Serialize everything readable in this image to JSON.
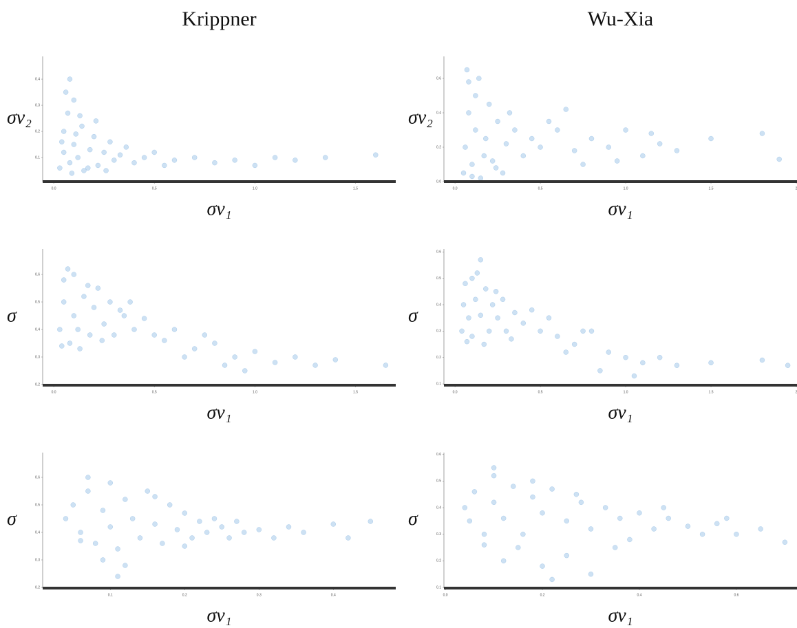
{
  "chart_data": [
    {
      "type": "scatter",
      "title": "Krippner",
      "x_label": "σν₁",
      "y_label": "σν₂",
      "color": "#6fa8dc",
      "xlim": [
        -0.055,
        1.7
      ],
      "ylim": [
        0.008,
        0.487
      ],
      "xticks": [
        {
          "value": 0,
          "label": "0.0"
        },
        0.5,
        {
          "value": 1,
          "label": "1.0"
        },
        1.5
      ],
      "yticks": [
        0.1,
        0.2,
        0.3,
        0.4
      ],
      "x": [
        0.03,
        0.05,
        0.05,
        0.07,
        0.08,
        0.1,
        0.1,
        0.12,
        0.14,
        0.15,
        0.18,
        0.2,
        0.22,
        0.25,
        0.28,
        0.3,
        0.33,
        0.36,
        0.4,
        0.45,
        0.5,
        0.55,
        0.6,
        0.7,
        0.8,
        0.9,
        1.0,
        1.1,
        1.2,
        1.35,
        1.6,
        0.06,
        0.09,
        0.13,
        0.17,
        0.21,
        0.26,
        0.04,
        0.08,
        0.11
      ],
      "values": [
        0.06,
        0.12,
        0.2,
        0.27,
        0.08,
        0.15,
        0.32,
        0.1,
        0.22,
        0.05,
        0.13,
        0.18,
        0.07,
        0.12,
        0.16,
        0.09,
        0.11,
        0.14,
        0.08,
        0.1,
        0.12,
        0.07,
        0.09,
        0.1,
        0.08,
        0.09,
        0.07,
        0.1,
        0.09,
        0.1,
        0.11,
        0.35,
        0.04,
        0.26,
        0.06,
        0.24,
        0.05,
        0.16,
        0.4,
        0.19
      ]
    },
    {
      "type": "scatter",
      "title": "Wu-Xia",
      "x_label": "σν₁",
      "y_label": "σν₂",
      "color": "#6fa8dc",
      "xlim": [
        -0.065,
        2.004
      ],
      "ylim": [
        0,
        0.728
      ],
      "xticks": [
        {
          "value": 0,
          "label": "0.0"
        },
        0.5,
        {
          "value": 1,
          "label": "1.0"
        },
        1.5,
        2
      ],
      "yticks": [
        {
          "value": 0,
          "label": "0.0"
        },
        0.2,
        0.4,
        0.6
      ],
      "x": [
        0.05,
        0.06,
        0.08,
        0.08,
        0.1,
        0.12,
        0.12,
        0.15,
        0.18,
        0.2,
        0.22,
        0.25,
        0.28,
        0.3,
        0.35,
        0.4,
        0.45,
        0.5,
        0.6,
        0.7,
        0.8,
        0.9,
        1.0,
        1.1,
        1.2,
        1.3,
        1.5,
        1.8,
        1.9,
        0.07,
        0.1,
        0.14,
        0.17,
        0.24,
        0.32,
        0.55,
        0.75,
        0.95,
        1.15,
        0.65
      ],
      "values": [
        0.05,
        0.2,
        0.4,
        0.58,
        0.1,
        0.3,
        0.5,
        0.02,
        0.25,
        0.45,
        0.12,
        0.35,
        0.05,
        0.22,
        0.3,
        0.15,
        0.25,
        0.2,
        0.3,
        0.18,
        0.25,
        0.2,
        0.3,
        0.15,
        0.22,
        0.18,
        0.25,
        0.28,
        0.13,
        0.65,
        0.03,
        0.6,
        0.15,
        0.08,
        0.4,
        0.35,
        0.1,
        0.12,
        0.28,
        0.42
      ]
    },
    {
      "type": "scatter",
      "x_label": "σν₁",
      "y_label": "σ",
      "color": "#6fa8dc",
      "xlim": [
        -0.055,
        1.7
      ],
      "ylim": [
        0.1975,
        0.6925
      ],
      "xticks": [
        {
          "value": 0,
          "label": "0.0"
        },
        0.5,
        {
          "value": 1,
          "label": "1.0"
        },
        1.5
      ],
      "yticks": [
        0.2,
        0.3,
        0.4,
        0.5,
        0.6
      ],
      "x": [
        0.03,
        0.05,
        0.05,
        0.08,
        0.1,
        0.1,
        0.12,
        0.15,
        0.18,
        0.2,
        0.22,
        0.25,
        0.28,
        0.3,
        0.35,
        0.4,
        0.45,
        0.5,
        0.55,
        0.6,
        0.7,
        0.8,
        0.9,
        1.0,
        1.1,
        1.2,
        1.3,
        1.4,
        1.65,
        0.07,
        0.13,
        0.17,
        0.24,
        0.33,
        0.65,
        0.75,
        0.85,
        0.95,
        0.04,
        0.38
      ],
      "values": [
        0.4,
        0.5,
        0.58,
        0.35,
        0.45,
        0.6,
        0.4,
        0.52,
        0.38,
        0.48,
        0.55,
        0.42,
        0.5,
        0.38,
        0.45,
        0.4,
        0.44,
        0.38,
        0.36,
        0.4,
        0.33,
        0.35,
        0.3,
        0.32,
        0.28,
        0.3,
        0.27,
        0.29,
        0.27,
        0.62,
        0.33,
        0.56,
        0.36,
        0.47,
        0.3,
        0.38,
        0.27,
        0.25,
        0.34,
        0.5
      ]
    },
    {
      "type": "scatter",
      "x_label": "σν₁",
      "y_label": "σ",
      "color": "#6fa8dc",
      "xlim": [
        -0.065,
        2.004
      ],
      "ylim": [
        0.095,
        0.611
      ],
      "xticks": [
        {
          "value": 0,
          "label": "0.0"
        },
        0.5,
        {
          "value": 1,
          "label": "1.0"
        },
        1.5,
        2
      ],
      "yticks": [
        0.1,
        0.2,
        0.3,
        0.4,
        0.5,
        0.6
      ],
      "x": [
        0.04,
        0.05,
        0.06,
        0.08,
        0.1,
        0.1,
        0.12,
        0.15,
        0.18,
        0.2,
        0.22,
        0.25,
        0.28,
        0.3,
        0.35,
        0.4,
        0.45,
        0.5,
        0.55,
        0.6,
        0.7,
        0.8,
        0.9,
        1.0,
        1.1,
        1.2,
        1.3,
        1.5,
        1.8,
        1.95,
        0.07,
        0.13,
        0.17,
        0.24,
        0.33,
        0.65,
        0.75,
        0.85,
        1.05,
        0.15
      ],
      "values": [
        0.3,
        0.4,
        0.48,
        0.35,
        0.28,
        0.5,
        0.42,
        0.36,
        0.46,
        0.3,
        0.4,
        0.35,
        0.42,
        0.3,
        0.37,
        0.33,
        0.38,
        0.3,
        0.35,
        0.28,
        0.25,
        0.3,
        0.22,
        0.2,
        0.18,
        0.2,
        0.17,
        0.18,
        0.19,
        0.17,
        0.26,
        0.52,
        0.25,
        0.45,
        0.27,
        0.22,
        0.3,
        0.15,
        0.13,
        0.57
      ]
    },
    {
      "type": "scatter",
      "x_label": "σν₁",
      "y_label": "σ",
      "color": "#6fa8dc",
      "xlim": [
        0.009,
        0.484
      ],
      "ylim": [
        0.1975,
        0.69
      ],
      "xticks": [
        0.1,
        0.2,
        0.3,
        0.4
      ],
      "yticks": [
        0.2,
        0.3,
        0.4,
        0.5,
        0.6
      ],
      "x": [
        0.04,
        0.05,
        0.06,
        0.07,
        0.08,
        0.09,
        0.1,
        0.1,
        0.11,
        0.12,
        0.13,
        0.14,
        0.15,
        0.16,
        0.17,
        0.18,
        0.19,
        0.2,
        0.21,
        0.22,
        0.23,
        0.24,
        0.25,
        0.26,
        0.27,
        0.28,
        0.3,
        0.32,
        0.34,
        0.36,
        0.4,
        0.42,
        0.45,
        0.07,
        0.09,
        0.12,
        0.16,
        0.2,
        0.11,
        0.06
      ],
      "values": [
        0.45,
        0.5,
        0.4,
        0.55,
        0.36,
        0.48,
        0.58,
        0.42,
        0.34,
        0.52,
        0.45,
        0.38,
        0.55,
        0.43,
        0.36,
        0.5,
        0.41,
        0.47,
        0.38,
        0.44,
        0.4,
        0.45,
        0.42,
        0.38,
        0.44,
        0.4,
        0.41,
        0.38,
        0.42,
        0.4,
        0.43,
        0.38,
        0.44,
        0.6,
        0.3,
        0.28,
        0.53,
        0.35,
        0.24,
        0.37
      ]
    },
    {
      "type": "scatter",
      "x_label": "σν₁",
      "y_label": "σ",
      "color": "#6fa8dc",
      "xlim": [
        -0.003,
        0.725
      ],
      "ylim": [
        0.0975,
        0.607
      ],
      "xticks": [
        {
          "value": 0,
          "label": "0.0"
        },
        0.2,
        0.4,
        0.6
      ],
      "yticks": [
        0.1,
        0.2,
        0.3,
        0.4,
        0.5,
        0.6
      ],
      "x": [
        0.04,
        0.05,
        0.06,
        0.08,
        0.1,
        0.1,
        0.12,
        0.14,
        0.16,
        0.18,
        0.2,
        0.22,
        0.25,
        0.28,
        0.3,
        0.33,
        0.36,
        0.4,
        0.43,
        0.46,
        0.5,
        0.53,
        0.56,
        0.6,
        0.65,
        0.7,
        0.12,
        0.15,
        0.2,
        0.25,
        0.3,
        0.35,
        0.08,
        0.18,
        0.27,
        0.38,
        0.45,
        0.1,
        0.22,
        0.58
      ],
      "values": [
        0.4,
        0.35,
        0.46,
        0.3,
        0.42,
        0.52,
        0.36,
        0.48,
        0.3,
        0.44,
        0.38,
        0.47,
        0.35,
        0.42,
        0.32,
        0.4,
        0.36,
        0.38,
        0.32,
        0.36,
        0.33,
        0.3,
        0.34,
        0.3,
        0.32,
        0.27,
        0.2,
        0.25,
        0.18,
        0.22,
        0.15,
        0.25,
        0.26,
        0.5,
        0.45,
        0.28,
        0.4,
        0.55,
        0.13,
        0.36
      ]
    }
  ]
}
